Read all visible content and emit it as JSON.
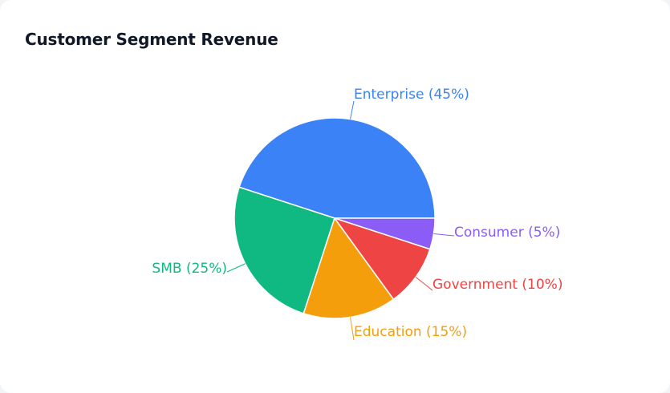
{
  "chart_data": {
    "type": "pie",
    "title": "Customer Segment Revenue",
    "slices": [
      {
        "label": "Enterprise (45%)",
        "value": 45,
        "color": "#3b82f6"
      },
      {
        "label": "SMB (25%)",
        "value": 25,
        "color": "#10b981"
      },
      {
        "label": "Education (15%)",
        "value": 15,
        "color": "#f59e0b"
      },
      {
        "label": "Government (10%)",
        "value": 10,
        "color": "#ef4444"
      },
      {
        "label": "Consumer (5%)",
        "value": 5,
        "color": "#8b5cf6"
      }
    ],
    "start_angle_deg": 0,
    "direction": "counterclockwise",
    "label_style": "outside-with-leader-lines"
  }
}
